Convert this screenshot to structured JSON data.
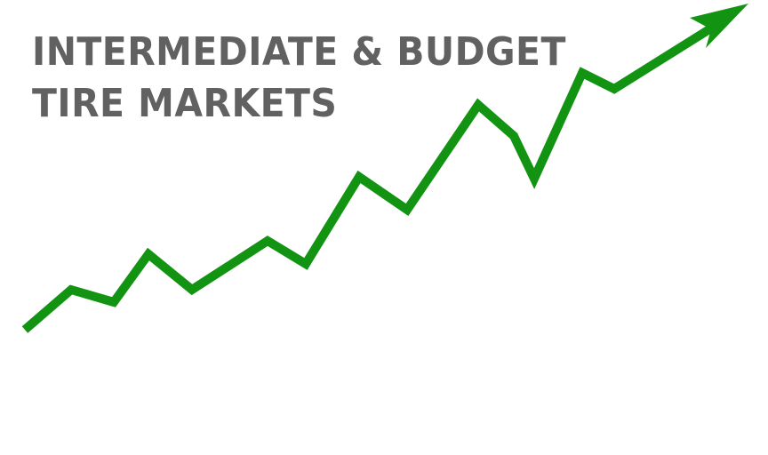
{
  "title": {
    "line1": "INTERMEDIATE & BUDGET",
    "line2": "TIRE MARKETS"
  },
  "colors": {
    "line": "#129412",
    "text": "#616161",
    "background": "#ffffff"
  },
  "icons": {
    "trend": "upward-trend-arrow-icon"
  }
}
